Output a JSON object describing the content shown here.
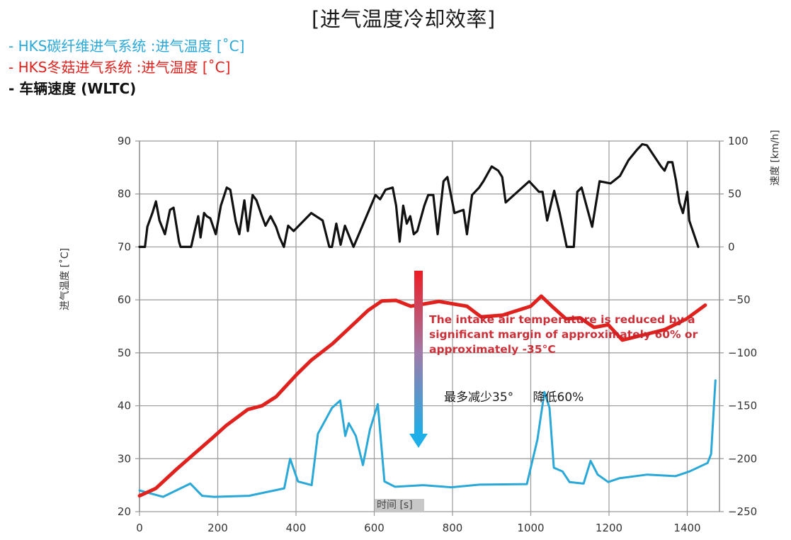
{
  "title": "[进气温度冷却效率]",
  "legend": [
    {
      "label": "- HKS碳纤维进气系统 :进气温度 [˚C]",
      "color": "#2aa8d8"
    },
    {
      "label": "- HKS冬菇进气系统 :进气温度 [˚C]",
      "color": "#e0221e"
    },
    {
      "label": "- 车辆速度 (WLTC)",
      "color": "#111111"
    }
  ],
  "axes": {
    "xlabel": "时间 [s]",
    "ylabel_left": "进气温度 [˚C]",
    "ylabel_right": "速度 [km/h]",
    "x_ticks": [
      "0",
      "200",
      "400",
      "600",
      "800",
      "1000",
      "1200",
      "1400"
    ],
    "y_left_ticks": [
      "90",
      "80",
      "70",
      "60",
      "50",
      "40",
      "30",
      "20"
    ],
    "y_right_ticks": [
      "100",
      "50",
      "0",
      "-50",
      "-100",
      "-150",
      "-200",
      "-250"
    ]
  },
  "annotations": {
    "english": "The intake air temperature is reduced by a significant margin of approximately 60% or approximately -35°C",
    "chinese_1": "最多减少35°",
    "chinese_2": "降低60%"
  },
  "chart_data": {
    "type": "line",
    "title": "[进气温度冷却效率]",
    "xlabel": "时间 [s]",
    "ylabel": "进气温度 [˚C]",
    "ylabel_right": "速度 [km/h]",
    "xlim": [
      0,
      1480
    ],
    "ylim": [
      20,
      90
    ],
    "ylim_right": [
      -250,
      100
    ],
    "grid": true,
    "legend_position": "top-left",
    "series": [
      {
        "name": "HKS碳纤维进气系统 :进气温度 [˚C]",
        "axis": "left",
        "color": "#2aa8d8",
        "x": [
          0,
          60,
          130,
          160,
          190,
          280,
          370,
          385,
          405,
          440,
          456,
          492,
          513,
          526,
          535,
          553,
          571,
          589,
          609,
          626,
          653,
          725,
          797,
          869,
          990,
          1017,
          1035,
          1048,
          1059,
          1081,
          1099,
          1135,
          1153,
          1171,
          1198,
          1226,
          1298,
          1370,
          1406,
          1452,
          1461,
          1472
        ],
        "y": [
          24.0,
          22.8,
          25.3,
          23.0,
          22.8,
          23.0,
          24.4,
          30.0,
          25.7,
          25.0,
          34.7,
          39.6,
          41.0,
          34.3,
          36.7,
          34.3,
          28.8,
          35.5,
          40.3,
          25.7,
          24.7,
          25.0,
          24.6,
          25.1,
          25.2,
          33.6,
          42.6,
          39.6,
          28.3,
          27.6,
          25.6,
          25.3,
          29.6,
          27.0,
          25.6,
          26.3,
          27.0,
          26.7,
          27.6,
          29.2,
          30.9,
          44.8
        ]
      },
      {
        "name": "HKS冬菇进气系统 :进气温度 [˚C]",
        "axis": "left",
        "color": "#e0221e",
        "x": [
          0,
          42,
          96,
          141,
          186,
          222,
          277,
          313,
          349,
          403,
          439,
          493,
          548,
          584,
          620,
          656,
          693,
          765,
          837,
          873,
          928,
          1000,
          1027,
          1054,
          1090,
          1126,
          1162,
          1198,
          1234,
          1289,
          1343,
          1398,
          1446
        ],
        "y": [
          23.0,
          24.4,
          28.1,
          31.0,
          33.9,
          36.3,
          39.3,
          40.0,
          41.7,
          46.0,
          48.6,
          51.7,
          55.5,
          58.0,
          59.8,
          59.9,
          58.8,
          59.7,
          58.8,
          56.8,
          57.1,
          58.8,
          60.7,
          58.8,
          56.4,
          56.6,
          54.8,
          55.3,
          52.4,
          53.4,
          54.4,
          56.4,
          59.0
        ]
      },
      {
        "name": "车辆速度 (WLTC)",
        "axis": "right",
        "color": "#111111",
        "x": [
          0,
          14,
          20,
          33,
          42,
          51,
          65,
          78,
          87,
          101,
          105,
          132,
          141,
          150,
          156,
          165,
          172,
          181,
          195,
          208,
          223,
          232,
          246,
          255,
          268,
          277,
          289,
          299,
          313,
          322,
          335,
          349,
          358,
          369,
          380,
          394,
          439,
          468,
          485,
          492,
          503,
          514,
          525,
          547,
          603,
          615,
          629,
          647,
          656,
          665,
          674,
          683,
          692,
          701,
          710,
          728,
          738,
          751,
          762,
          777,
          787,
          805,
          828,
          837,
          850,
          868,
          879,
          900,
          917,
          927,
          936,
          996,
          1021,
          1030,
          1042,
          1060,
          1074,
          1092,
          1110,
          1119,
          1130,
          1157,
          1176,
          1204,
          1228,
          1250,
          1272,
          1285,
          1297,
          1315,
          1333,
          1342,
          1351,
          1362,
          1371,
          1380,
          1389,
          1400,
          1405,
          1428
        ],
        "y": [
          0,
          0,
          19,
          32,
          43,
          25,
          12,
          35,
          37,
          5,
          0,
          0,
          15,
          29,
          9,
          32,
          29,
          27,
          12,
          39,
          56,
          54,
          24,
          12,
          44,
          15,
          49,
          44,
          29,
          20,
          29,
          19,
          9,
          0,
          20,
          15,
          32,
          25,
          0,
          0,
          22,
          2,
          20,
          0,
          49,
          45,
          54,
          56,
          39,
          5,
          39,
          22,
          29,
          12,
          15,
          39,
          49,
          49,
          12,
          62,
          66,
          32,
          35,
          12,
          49,
          56,
          62,
          76,
          72,
          66,
          42,
          62,
          52,
          52,
          25,
          53,
          32,
          0,
          0,
          52,
          56,
          19,
          62,
          60,
          67,
          82,
          92,
          97,
          96,
          86,
          76,
          72,
          80,
          80,
          63,
          42,
          32,
          52,
          25,
          0
        ]
      }
    ]
  }
}
